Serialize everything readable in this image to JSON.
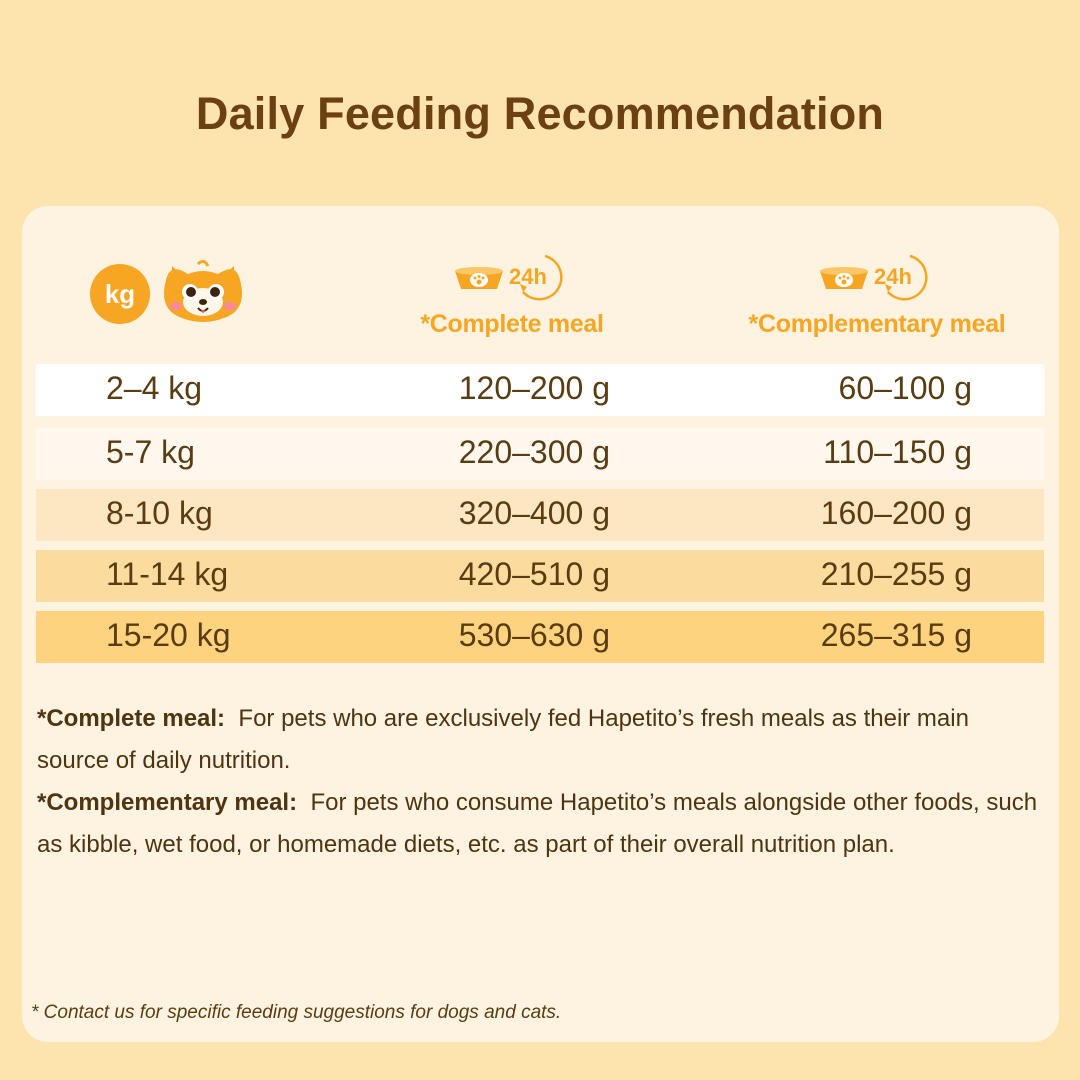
{
  "title": "Daily Feeding Recommendation",
  "header": {
    "kg_badge": "kg",
    "complete_label": "*Complete meal",
    "complementary_label": "*Complementary meal",
    "timer_text": "24h"
  },
  "table": {
    "rows": [
      {
        "weight": "2–4 kg",
        "complete": "120–200 g",
        "complementary": "60–100 g",
        "bg": "#ffffff"
      },
      {
        "weight": "5-7 kg",
        "complete": "220–300 g",
        "complementary": "110–150 g",
        "bg": "#fff8ef"
      },
      {
        "weight": "8-10 kg",
        "complete": "320–400 g",
        "complementary": "160–200 g",
        "bg": "#fde7c3"
      },
      {
        "weight": "11-14 kg",
        "complete": "420–510 g",
        "complementary": "210–255 g",
        "bg": "#fcdc9e"
      },
      {
        "weight": "15-20 kg",
        "complete": "530–630 g",
        "complementary": "265–315 g",
        "bg": "#fdd37f"
      }
    ]
  },
  "notes": {
    "complete_term": "*Complete meal:",
    "complete_text": "For pets who are exclusively fed Hapetito’s fresh meals as their main source of daily nutrition.",
    "complementary_term": "*Complementary meal:",
    "complementary_text": "For pets who consume Hapetito’s meals alongside other foods, such as kibble, wet food, or homemade diets, etc. as part of their overall nutrition plan."
  },
  "footnote": "* Contact us for specific feeding suggestions for dogs and cats.",
  "colors": {
    "accent": "#f6a623",
    "title": "#6b4110",
    "background": "#fde4ae",
    "card": "#fef3e1"
  },
  "icons": [
    "pet-face-icon",
    "food-bowl-icon",
    "clock-24h-icon"
  ]
}
